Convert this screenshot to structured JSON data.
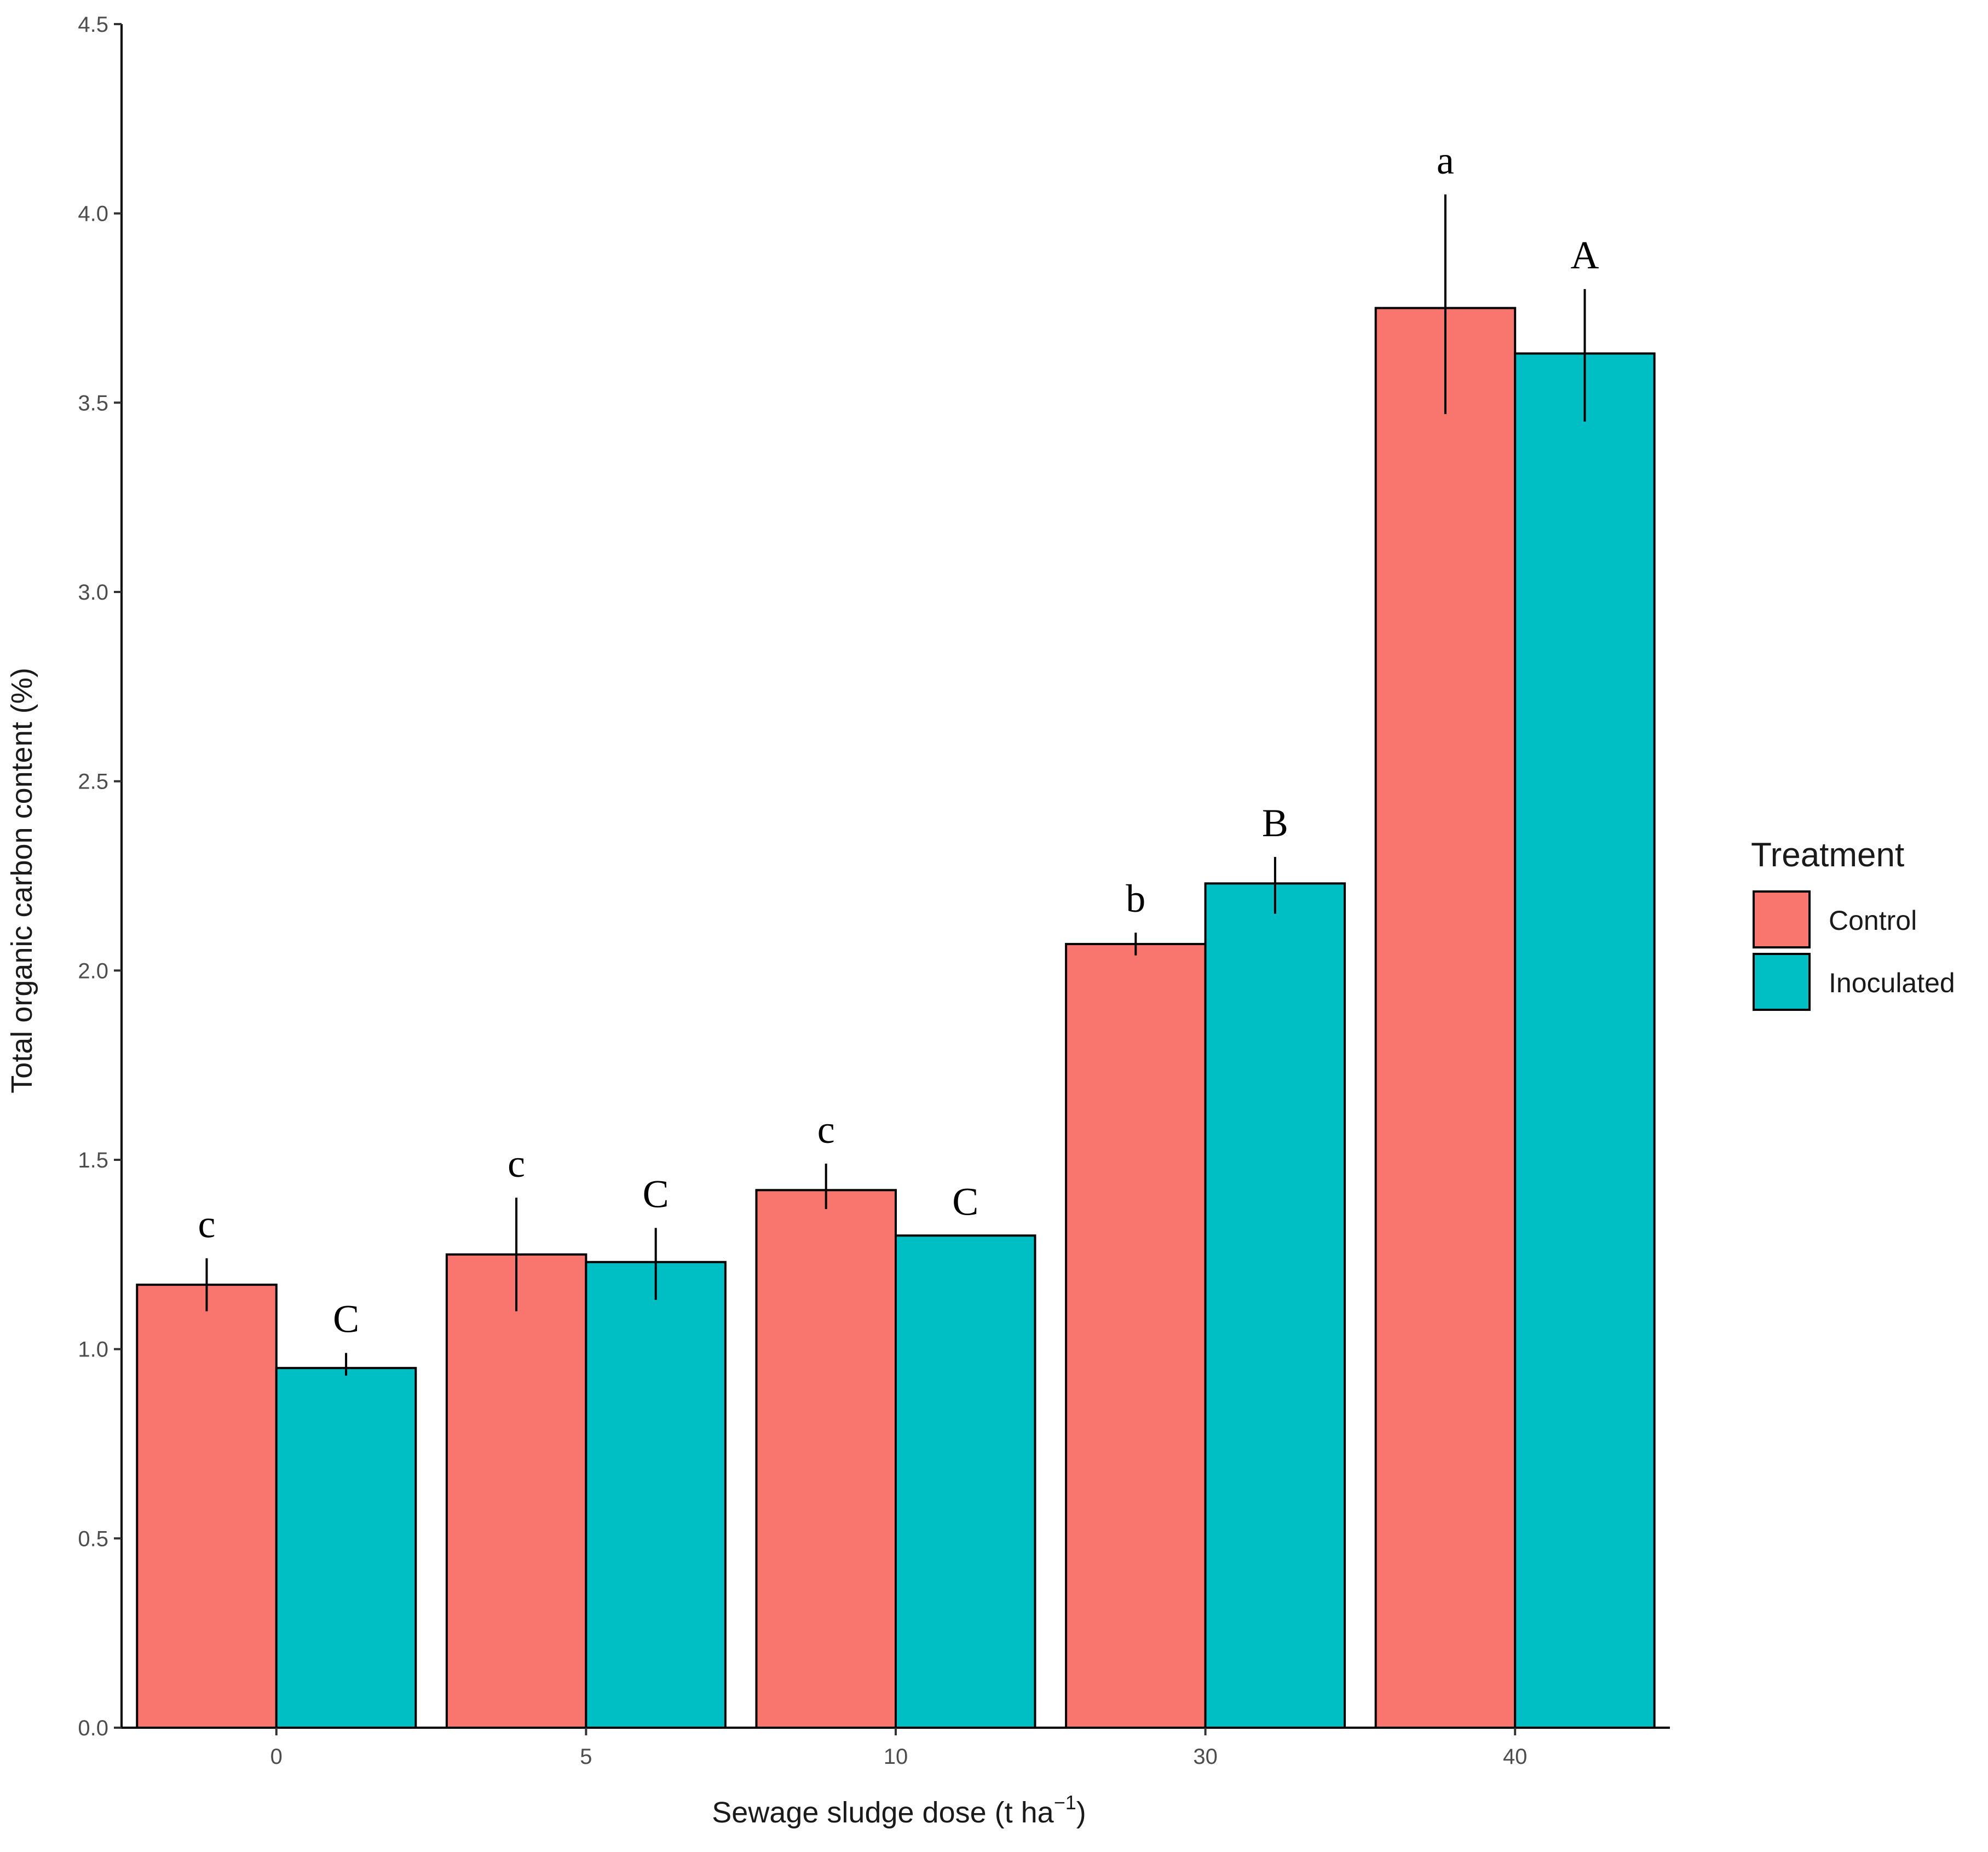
{
  "chart_data": {
    "type": "bar",
    "title": "",
    "xlabel": "Sewage sludge dose (t ha",
    "xlabel_superscript": "−1",
    "xlabel_suffix": ")",
    "ylabel": "Total organic carbon content (%)",
    "ylim": [
      0,
      4.5
    ],
    "yticks": [
      "0.0",
      "0.5",
      "1.0",
      "1.5",
      "2.0",
      "2.5",
      "3.0",
      "3.5",
      "4.0",
      "4.5"
    ],
    "grid": false,
    "categories": [
      "0",
      "5",
      "10",
      "30",
      "40"
    ],
    "legend": {
      "title": "Treatment",
      "position": "right"
    },
    "series": [
      {
        "name": "Control",
        "color": "#F8766D",
        "values": [
          1.17,
          1.25,
          1.42,
          2.07,
          3.75
        ],
        "error_low": [
          1.1,
          1.1,
          1.37,
          2.04,
          3.47
        ],
        "error_high": [
          1.24,
          1.4,
          1.49,
          2.1,
          4.05
        ],
        "letters": [
          "c",
          "c",
          "c",
          "b",
          "a"
        ]
      },
      {
        "name": "Inoculated",
        "color": "#00BFC4",
        "values": [
          0.95,
          1.23,
          1.3,
          2.23,
          3.63
        ],
        "error_low": [
          0.93,
          1.13,
          1.3,
          2.15,
          3.45
        ],
        "error_high": [
          0.99,
          1.32,
          1.3,
          2.3,
          3.8
        ],
        "letters": [
          "C",
          "C",
          "C",
          "B",
          "A"
        ]
      }
    ]
  }
}
